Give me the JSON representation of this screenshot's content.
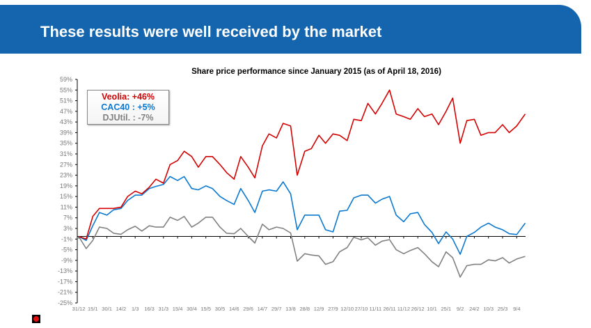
{
  "header": {
    "title": "These results were well received by the market",
    "color": "#1565ae"
  },
  "chart_data": {
    "type": "line",
    "title": "Share price performance since January 2015 (as of April 18, 2016)",
    "xlabel": "",
    "ylabel": "",
    "ylim": [
      -25,
      59
    ],
    "yticks": [
      "59%",
      "55%",
      "51%",
      "47%",
      "43%",
      "39%",
      "35%",
      "31%",
      "27%",
      "23%",
      "19%",
      "15%",
      "11%",
      "7%",
      "3%",
      "-1%",
      "-5%",
      "-9%",
      "-13%",
      "-17%",
      "-21%",
      "-25%"
    ],
    "xticks": [
      "31/12",
      "15/1",
      "30/1",
      "14/2",
      "1/3",
      "16/3",
      "31/3",
      "15/4",
      "30/4",
      "15/5",
      "30/5",
      "14/6",
      "29/6",
      "14/7",
      "29/7",
      "13/8",
      "28/8",
      "12/9",
      "27/9",
      "12/10",
      "27/10",
      "11/11",
      "26/11",
      "11/12",
      "26/12",
      "10/1",
      "25/1",
      "9/2",
      "24/2",
      "10/3",
      "25/3",
      "9/4"
    ],
    "xrange": [
      "2014-12-31",
      "2016-04-18"
    ],
    "grid": false,
    "legend_placement": "top-left",
    "legend": [
      {
        "text": "Veolia: +46%",
        "color": "#d40000"
      },
      {
        "text": "CAC40 : +5%",
        "color": "#0a78d0"
      },
      {
        "text": "DJUtil. : -7%",
        "color": "#808080"
      }
    ],
    "x": [
      "2014-12-31",
      "2015-01-08",
      "2015-01-15",
      "2015-01-22",
      "2015-01-30",
      "2015-02-06",
      "2015-02-14",
      "2015-02-21",
      "2015-03-01",
      "2015-03-08",
      "2015-03-16",
      "2015-03-23",
      "2015-03-31",
      "2015-04-07",
      "2015-04-15",
      "2015-04-22",
      "2015-04-30",
      "2015-05-07",
      "2015-05-15",
      "2015-05-22",
      "2015-05-30",
      "2015-06-06",
      "2015-06-14",
      "2015-06-21",
      "2015-06-29",
      "2015-07-06",
      "2015-07-14",
      "2015-07-21",
      "2015-07-29",
      "2015-08-05",
      "2015-08-13",
      "2015-08-20",
      "2015-08-28",
      "2015-09-04",
      "2015-09-12",
      "2015-09-19",
      "2015-09-27",
      "2015-10-04",
      "2015-10-12",
      "2015-10-19",
      "2015-10-27",
      "2015-11-03",
      "2015-11-11",
      "2015-11-18",
      "2015-11-26",
      "2015-12-03",
      "2015-12-11",
      "2015-12-18",
      "2015-12-26",
      "2016-01-02",
      "2016-01-10",
      "2016-01-17",
      "2016-01-25",
      "2016-02-01",
      "2016-02-09",
      "2016-02-16",
      "2016-02-24",
      "2016-03-02",
      "2016-03-10",
      "2016-03-17",
      "2016-03-25",
      "2016-04-01",
      "2016-04-09",
      "2016-04-18"
    ],
    "series": [
      {
        "name": "Veolia",
        "color": "#d40000",
        "values": [
          0,
          -1,
          7.5,
          10.5,
          10.5,
          10.5,
          11,
          15,
          17,
          16,
          18.5,
          21.5,
          20,
          27,
          28.5,
          32,
          30,
          26,
          30,
          30,
          27,
          24,
          21.5,
          30,
          26,
          22,
          34,
          38.5,
          37,
          42.5,
          41.5,
          23,
          32,
          33,
          38,
          35,
          38.5,
          38,
          36,
          44,
          43.5,
          50,
          46,
          50,
          55,
          46,
          45,
          44,
          48,
          45,
          46,
          42,
          47,
          52,
          35,
          43.5,
          44,
          38,
          39,
          39,
          42,
          39,
          41.5,
          46
        ]
      },
      {
        "name": "CAC40",
        "color": "#0a78d0",
        "values": [
          0,
          -1.5,
          4,
          9,
          8,
          10,
          10.5,
          13.5,
          15.5,
          15.5,
          18,
          18.8,
          19.5,
          22.5,
          21,
          22.5,
          18,
          17.5,
          19,
          18,
          15,
          13.5,
          12,
          18,
          13.5,
          9,
          17,
          17.5,
          17,
          20.5,
          16,
          2.5,
          8,
          8,
          8,
          2.5,
          1.7,
          9.5,
          9.8,
          14.5,
          15.5,
          15.5,
          12.5,
          14,
          15,
          8,
          5.5,
          8.5,
          9,
          4.5,
          1.5,
          -2.7,
          1.7,
          -1,
          -6.7,
          0,
          1.5,
          3.5,
          5,
          3.5,
          2.5,
          1,
          0.7,
          5
        ]
      },
      {
        "name": "DJUtil.",
        "color": "#808080",
        "values": [
          0,
          -4.6,
          -1.5,
          3.5,
          3,
          1.2,
          0.8,
          2.5,
          3.8,
          2,
          4,
          3.5,
          3.5,
          7.2,
          6,
          7.5,
          3.5,
          5,
          7.2,
          7.2,
          3.5,
          1.2,
          1,
          3,
          0,
          -2.5,
          4.6,
          2.5,
          3.5,
          3,
          1.3,
          -9.3,
          -6.5,
          -7,
          -7.3,
          -10.5,
          -9.5,
          -5.8,
          -4.2,
          -0.3,
          -1.3,
          -0.5,
          -3.3,
          -1.8,
          -1.2,
          -5,
          -6.5,
          -5.3,
          -4.2,
          -6.5,
          -9.5,
          -11.4,
          -5.8,
          -8,
          -15.3,
          -11,
          -10.5,
          -10.5,
          -8.8,
          -9.2,
          -8,
          -10,
          -8.5,
          -7.5
        ]
      }
    ]
  }
}
